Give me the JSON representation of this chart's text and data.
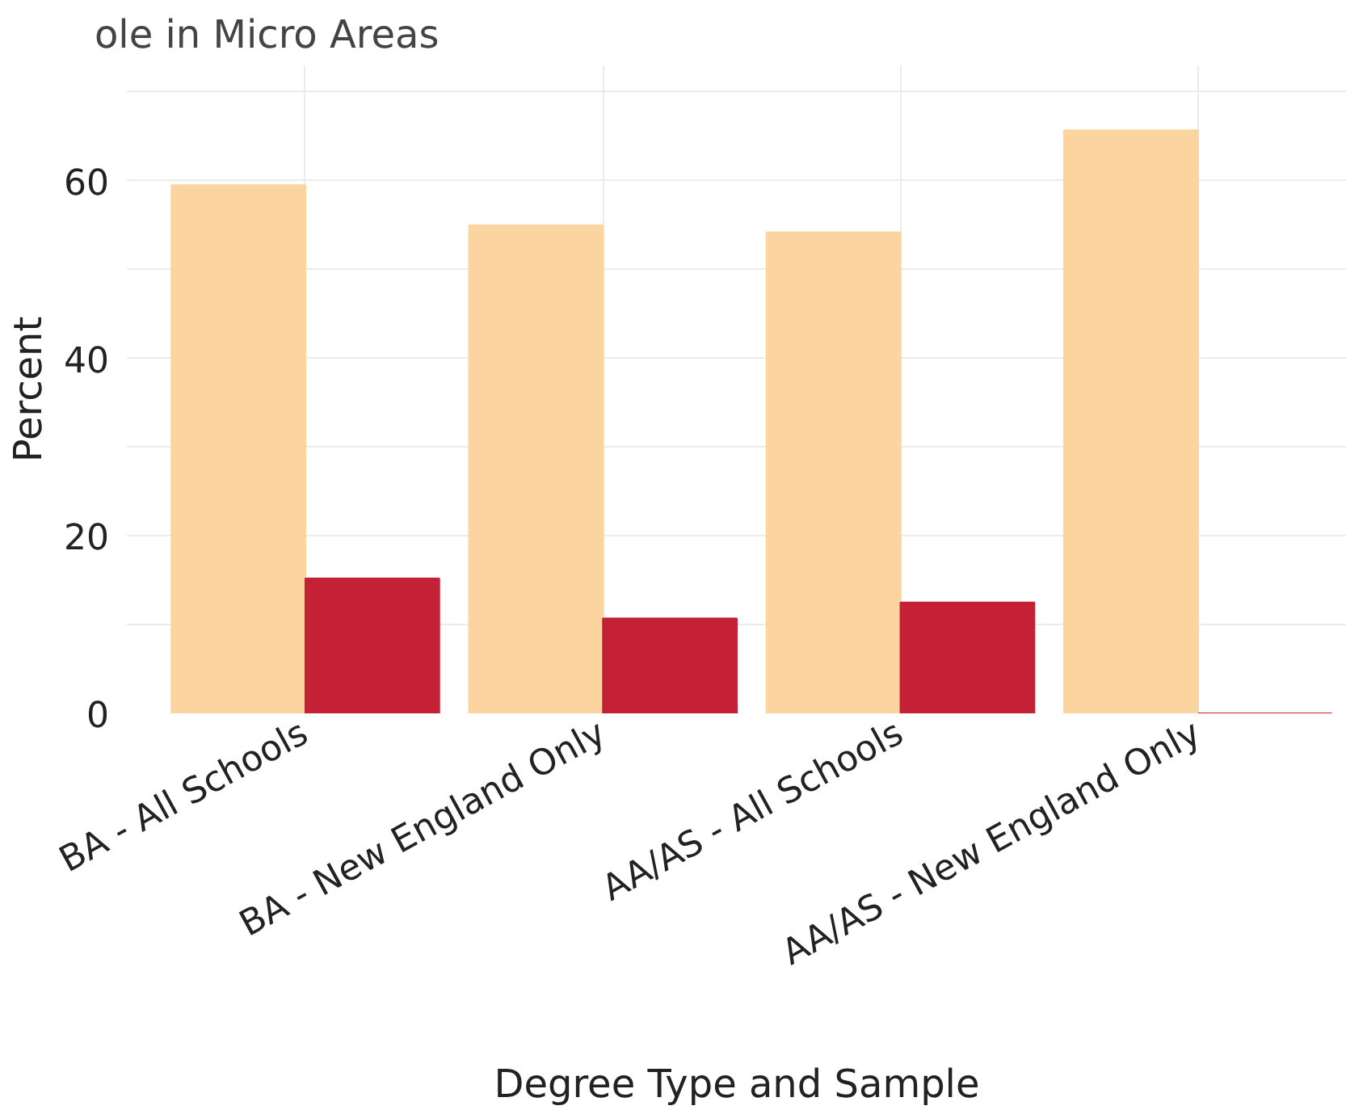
{
  "chart_data": {
    "type": "bar",
    "title": "ole in Micro Areas",
    "xlabel": "Degree Type and Sample",
    "ylabel": "Percent",
    "categories": [
      "BA - All Schools",
      "BA - New England Only",
      "AA/AS - All Schools",
      "AA/AS - New England Only"
    ],
    "series": [
      {
        "color": "#fcd49f",
        "values": [
          59.5,
          55.0,
          54.2,
          65.7
        ]
      },
      {
        "color": "#c42136",
        "values": [
          15.2,
          10.7,
          12.5,
          0
        ]
      }
    ],
    "ylim": [
      0,
      73
    ],
    "yticks": [
      0,
      {
        "value": 10,
        "label": null
      },
      20,
      {
        "value": 30,
        "label": null
      },
      40,
      {
        "value": 50,
        "label": null
      },
      60,
      {
        "value": 70,
        "label": null
      }
    ],
    "grid": true
  }
}
